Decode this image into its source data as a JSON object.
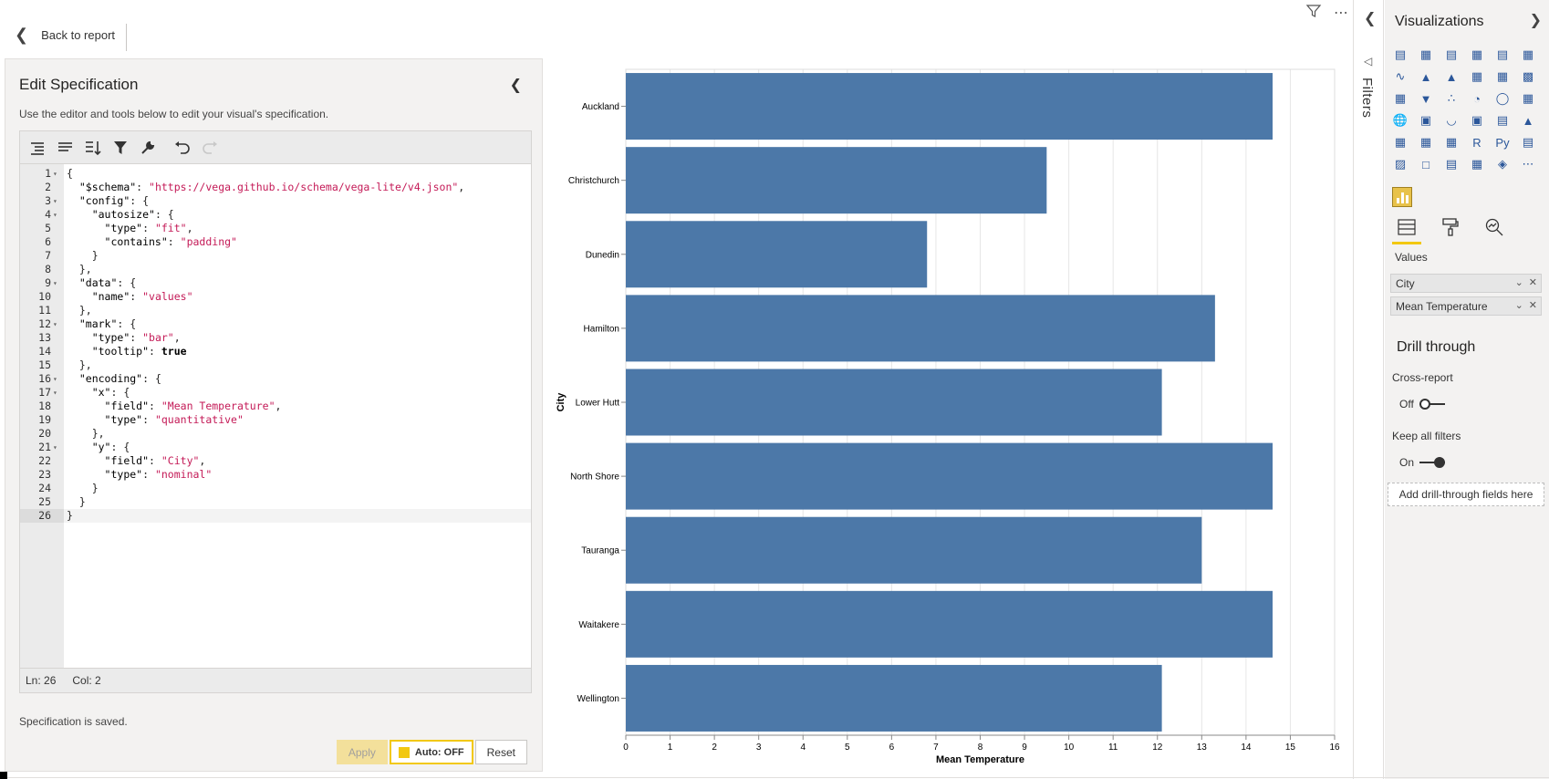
{
  "header": {
    "back_label": "Back to report"
  },
  "editor": {
    "title": "Edit Specification",
    "description": "Use the editor and tools below to edit your visual's specification.",
    "status": {
      "line": "Ln: 26",
      "col": "Col: 2"
    },
    "saved_message": "Specification is saved.",
    "buttons": {
      "apply": "Apply",
      "auto": "Auto: OFF",
      "reset": "Reset"
    },
    "code_lines": [
      "{",
      "  \"$schema\": \"https://vega.github.io/schema/vega-lite/v4.json\",",
      "  \"config\": {",
      "    \"autosize\": {",
      "      \"type\": \"fit\",",
      "      \"contains\": \"padding\"",
      "    }",
      "  },",
      "  \"data\": {",
      "    \"name\": \"values\"",
      "  },",
      "  \"mark\": {",
      "    \"type\": \"bar\",",
      "    \"tooltip\": true",
      "  },",
      "  \"encoding\": {",
      "    \"x\": {",
      "      \"field\": \"Mean Temperature\",",
      "      \"type\": \"quantitative\"",
      "    },",
      "    \"y\": {",
      "      \"field\": \"City\",",
      "      \"type\": \"nominal\"",
      "    }",
      "  }",
      "}"
    ]
  },
  "chart_data": {
    "type": "bar",
    "orientation": "horizontal",
    "categories": [
      "Auckland",
      "Christchurch",
      "Dunedin",
      "Hamilton",
      "Lower Hutt",
      "North Shore",
      "Tauranga",
      "Waitakere",
      "Wellington"
    ],
    "values": [
      14.6,
      9.5,
      6.8,
      13.3,
      12.1,
      14.6,
      13.0,
      14.6,
      12.1
    ],
    "xlabel": "Mean Temperature",
    "ylabel": "City",
    "xlim": [
      0,
      16
    ],
    "xticks": [
      0,
      1,
      2,
      3,
      4,
      5,
      6,
      7,
      8,
      9,
      10,
      11,
      12,
      13,
      14,
      15,
      16
    ],
    "grid": true,
    "bar_color": "#4c78a8"
  },
  "filters": {
    "label": "Filters"
  },
  "visualizations": {
    "title": "Visualizations",
    "values_label": "Values",
    "fields": [
      "City",
      "Mean Temperature"
    ],
    "drill_through": {
      "title": "Drill through",
      "cross_report_label": "Cross-report",
      "cross_report_state": "Off",
      "keep_filters_label": "Keep all filters",
      "keep_filters_state": "On",
      "drop_label": "Add drill-through fields here"
    },
    "accent_color": "#f2c811"
  }
}
